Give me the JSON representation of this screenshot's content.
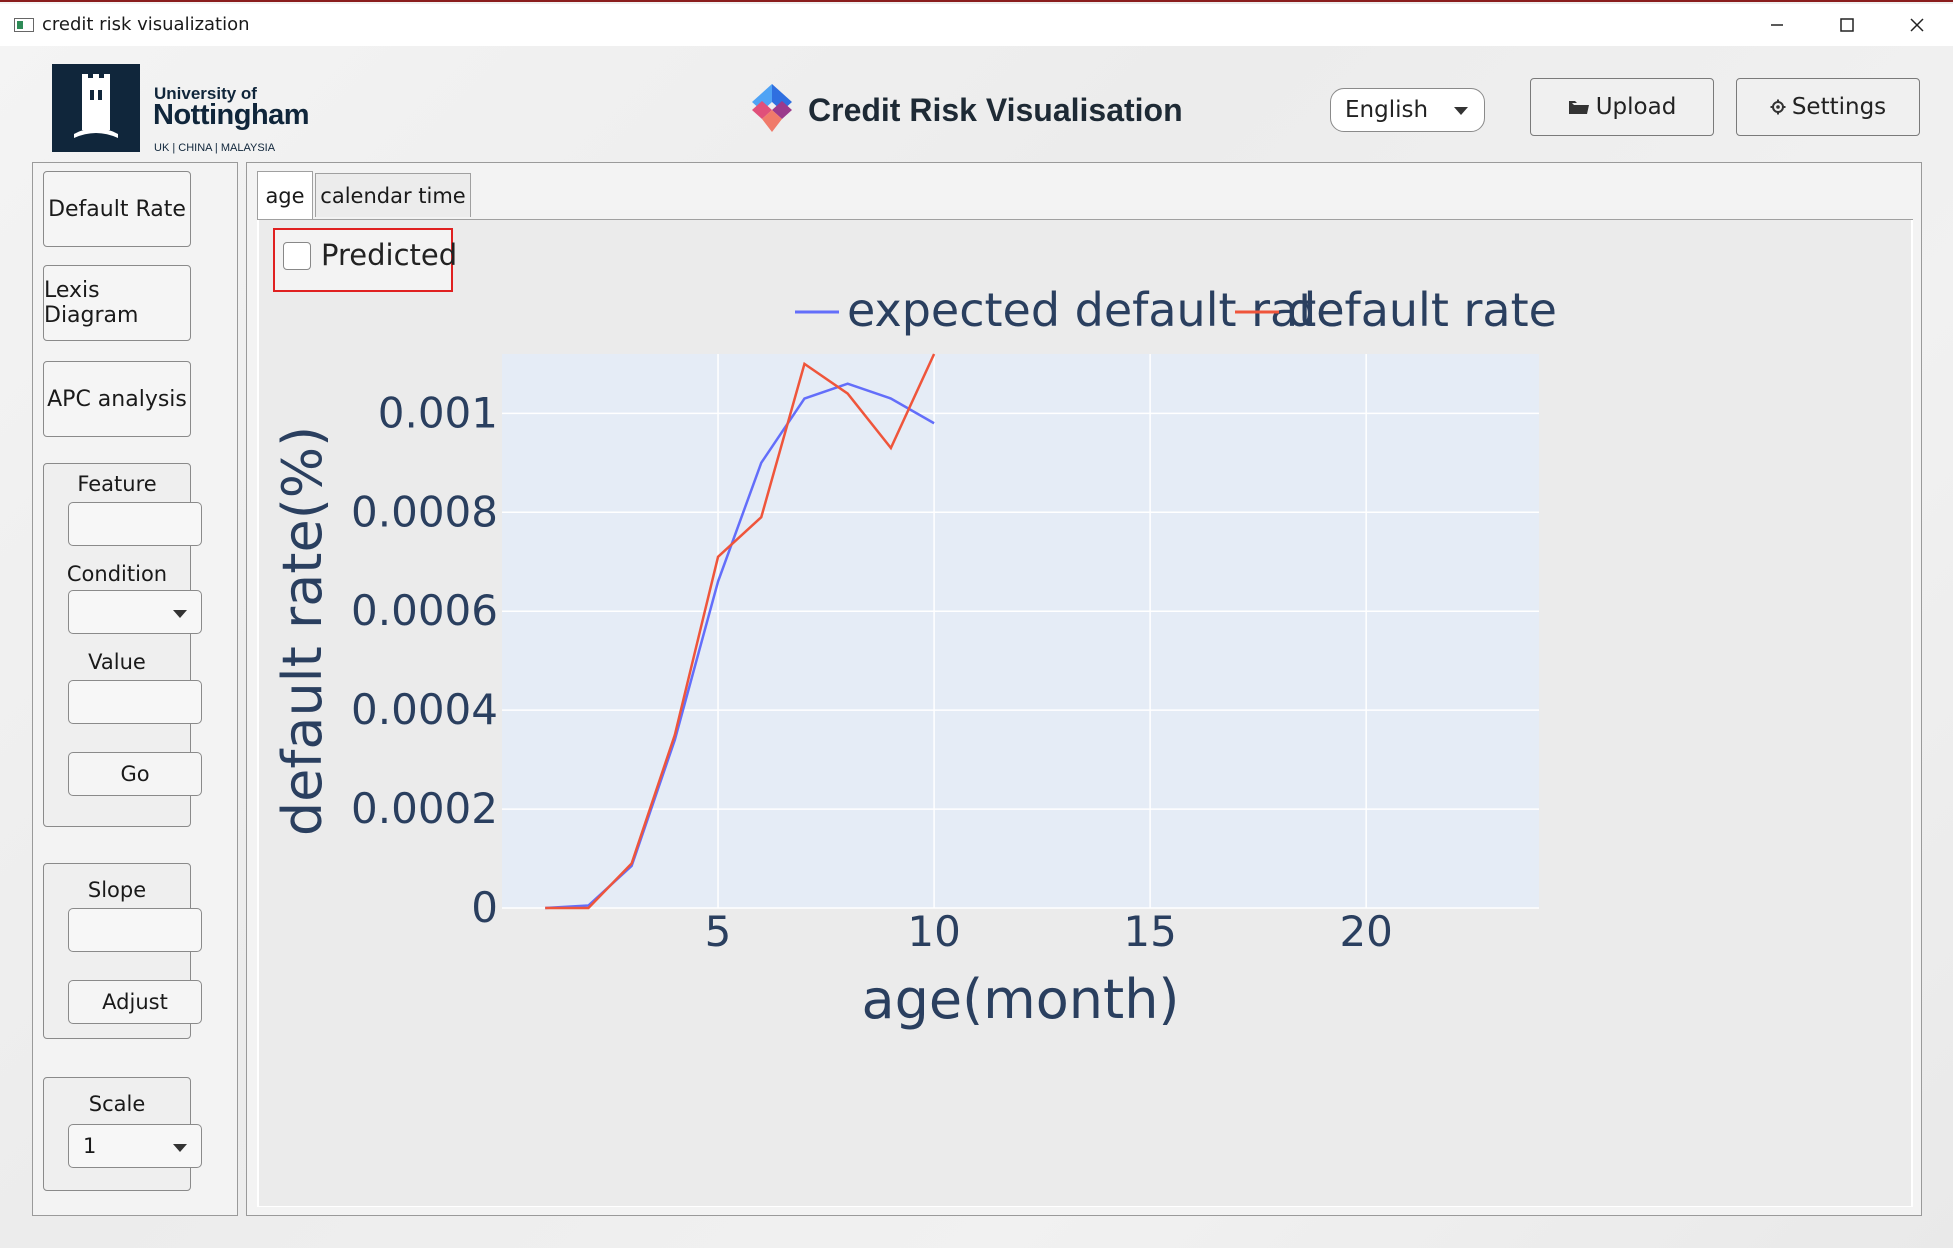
{
  "window": {
    "title": "credit risk visualization"
  },
  "header": {
    "logo": {
      "line1": "University of",
      "line2": "Nottingham",
      "line3": "UK | CHINA | MALAYSIA"
    },
    "app_title": "Credit Risk Visualisation",
    "language": {
      "selected": "English"
    },
    "upload_label": "Upload",
    "settings_label": "Settings"
  },
  "sidebar": {
    "default_rate": "Default Rate",
    "lexis_diagram": "Lexis Diagram",
    "apc_analysis": "APC analysis",
    "filter": {
      "feature_label": "Feature",
      "feature_value": "",
      "condition_label": "Condition",
      "condition_value": "",
      "value_label": "Value",
      "value_value": "",
      "go_label": "Go"
    },
    "slope": {
      "label": "Slope",
      "value": "",
      "adjust_label": "Adjust"
    },
    "scale": {
      "label": "Scale",
      "selected": "1"
    }
  },
  "tabs": [
    {
      "label": "age"
    },
    {
      "label": "calendar time"
    }
  ],
  "predicted": {
    "label": "Predicted",
    "checked": false
  },
  "chart_data": {
    "type": "line",
    "xlabel": "age(month)",
    "ylabel": "default rate(%)",
    "xlim": [
      0,
      24
    ],
    "ylim": [
      0,
      0.00112
    ],
    "xticks": [
      "5",
      "10",
      "15",
      "20"
    ],
    "yticks": [
      "0",
      "0.0002",
      "0.0004",
      "0.0006",
      "0.0008",
      "0.001"
    ],
    "legend_position": "top-right",
    "grid": true,
    "series": [
      {
        "name": "expected default rate",
        "color": "#636efa",
        "x": [
          1,
          2,
          3,
          4,
          5,
          6,
          7,
          8,
          9,
          10
        ],
        "y": [
          0,
          5e-06,
          8.5e-05,
          0.00034,
          0.00066,
          0.0009,
          0.00103,
          0.00106,
          0.00103,
          0.00098
        ]
      },
      {
        "name": "default rate",
        "color": "#ef553b",
        "x": [
          1,
          2,
          3,
          4,
          5,
          6,
          7,
          8,
          9,
          10
        ],
        "y": [
          0,
          0,
          9e-05,
          0.00035,
          0.00071,
          0.00079,
          0.0011,
          0.00104,
          0.00093,
          0.00112
        ]
      }
    ]
  }
}
